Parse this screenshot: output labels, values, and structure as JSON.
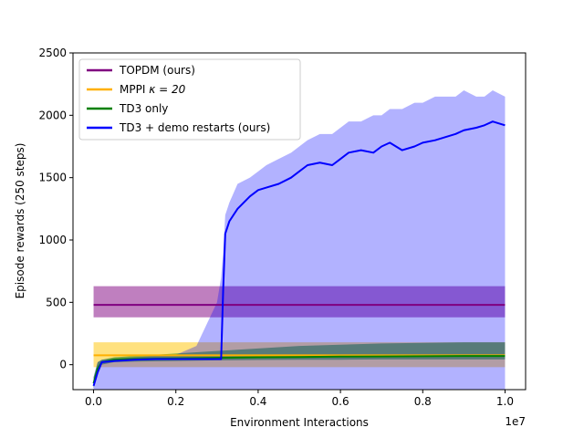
{
  "chart_data": {
    "type": "line",
    "title": "",
    "xlabel": "Environment Interactions",
    "ylabel": "Episode rewards (250 steps)",
    "x_offset_label": "1e7",
    "xlim": [
      -0.05,
      1.05
    ],
    "ylim": [
      -200,
      2500
    ],
    "x_ticks": [
      0.0,
      0.2,
      0.4,
      0.6,
      0.8,
      1.0
    ],
    "x_tick_labels": [
      "0.0",
      "0.2",
      "0.4",
      "0.6",
      "0.8",
      "1.0"
    ],
    "y_ticks": [
      0,
      500,
      1000,
      1500,
      2000,
      2500
    ],
    "y_tick_labels": [
      "0",
      "500",
      "1000",
      "1500",
      "2000",
      "2500"
    ],
    "legend_position": "top-left",
    "series": [
      {
        "name": "TOPDM (ours)",
        "color": "#800080",
        "band_color": "#800080",
        "x": [
          0.0,
          1.0
        ],
        "mean": [
          480,
          480
        ],
        "lower": [
          380,
          380
        ],
        "upper": [
          630,
          630
        ]
      },
      {
        "name": "MPPI κ = 20",
        "legend_label": "MPPI",
        "legend_math": "κ = 20",
        "color": "#ffb000",
        "band_color": "#ffc400",
        "x": [
          0.0,
          1.0
        ],
        "mean": [
          75,
          75
        ],
        "lower": [
          -20,
          -20
        ],
        "upper": [
          180,
          180
        ]
      },
      {
        "name": "TD3 only",
        "color": "#008000",
        "band_color": "#008000",
        "x": [
          0.0,
          0.01,
          0.02,
          0.05,
          0.1,
          0.2,
          0.3,
          0.4,
          0.5,
          0.6,
          0.7,
          0.8,
          0.9,
          1.0
        ],
        "mean": [
          -150,
          -30,
          20,
          40,
          45,
          50,
          55,
          60,
          62,
          65,
          66,
          68,
          70,
          70
        ],
        "lower": [
          -190,
          -80,
          0,
          20,
          25,
          30,
          35,
          38,
          40,
          40,
          42,
          42,
          42,
          42
        ],
        "upper": [
          -100,
          20,
          40,
          60,
          70,
          90,
          110,
          130,
          150,
          160,
          170,
          175,
          180,
          180
        ]
      },
      {
        "name": "TD3 + demo restarts (ours)",
        "color": "#0000ff",
        "band_color": "#0000ff",
        "x": [
          0.0,
          0.01,
          0.02,
          0.05,
          0.1,
          0.15,
          0.2,
          0.25,
          0.3,
          0.31,
          0.315,
          0.32,
          0.33,
          0.35,
          0.38,
          0.4,
          0.42,
          0.45,
          0.48,
          0.5,
          0.52,
          0.55,
          0.58,
          0.6,
          0.62,
          0.65,
          0.68,
          0.7,
          0.72,
          0.75,
          0.78,
          0.8,
          0.83,
          0.85,
          0.88,
          0.9,
          0.93,
          0.95,
          0.97,
          1.0
        ],
        "mean": [
          -170,
          -60,
          20,
          30,
          40,
          45,
          45,
          45,
          45,
          45,
          600,
          1050,
          1150,
          1250,
          1350,
          1400,
          1420,
          1450,
          1500,
          1550,
          1600,
          1620,
          1600,
          1650,
          1700,
          1720,
          1700,
          1750,
          1780,
          1720,
          1750,
          1780,
          1800,
          1820,
          1850,
          1880,
          1900,
          1920,
          1950,
          1920
        ],
        "lower": [
          -200,
          -200,
          -200,
          -200,
          -200,
          -200,
          -200,
          -200,
          -200,
          -200,
          -200,
          -200,
          -200,
          -200,
          -200,
          -200,
          -200,
          -200,
          -200,
          -200,
          -200,
          -200,
          -200,
          -200,
          -200,
          -200,
          -200,
          -200,
          -200,
          -200,
          -200,
          -200,
          -200,
          -200,
          -200,
          -200,
          -200,
          -200,
          -200,
          -200
        ],
        "upper": [
          -100,
          20,
          40,
          50,
          60,
          70,
          80,
          150,
          500,
          700,
          900,
          1200,
          1300,
          1450,
          1500,
          1550,
          1600,
          1650,
          1700,
          1750,
          1800,
          1850,
          1850,
          1900,
          1950,
          1950,
          2000,
          2000,
          2050,
          2050,
          2100,
          2100,
          2150,
          2150,
          2150,
          2200,
          2150,
          2150,
          2200,
          2150
        ]
      }
    ]
  }
}
